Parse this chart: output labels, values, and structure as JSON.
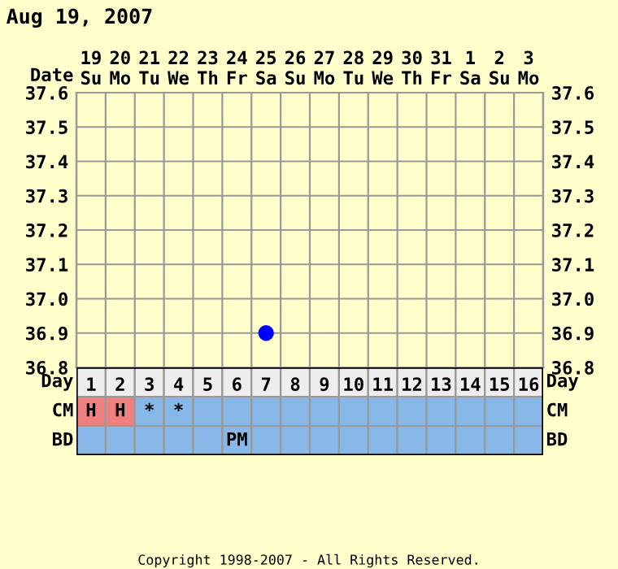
{
  "chart_data": [
    {
      "type": "scatter",
      "title": "Aug 19, 2007",
      "xlabel": "Date",
      "categories": [
        "19\nSu",
        "20\nMo",
        "21\nTu",
        "22\nWe",
        "23\nTh",
        "24\nFr",
        "25\nSa",
        "26\nSu",
        "27\nMo",
        "28\nTu",
        "29\nWe",
        "30\nTh",
        "31\nFr",
        "1\nSa",
        "2\nSu",
        "3\nMo"
      ],
      "series": [
        {
          "color": "#0000ff",
          "values": [
            null,
            null,
            null,
            null,
            null,
            null,
            36.9,
            null,
            null,
            null,
            null,
            null,
            null,
            null,
            null,
            null
          ]
        }
      ],
      "ylim": [
        36.8,
        37.6
      ],
      "yticks": [
        36.8,
        36.9,
        {
          "value": 37,
          "label": "37.0"
        },
        37.1,
        37.2,
        37.3,
        37.4,
        37.5,
        37.6
      ],
      "y2lim": [
        36.8,
        37.6
      ],
      "y2ticks": [
        36.8,
        36.9,
        {
          "value": 37,
          "label": "37.0"
        },
        37.1,
        37.2,
        37.3,
        37.4,
        37.5,
        37.6
      ],
      "grid": true,
      "marker": "circle",
      "legend": false
    },
    {
      "type": "heatmap",
      "xlabel": "Day",
      "cells": [
        [
          null,
          null,
          null,
          null,
          null,
          null,
          null,
          null,
          null,
          null,
          null,
          null,
          null,
          null,
          null,
          null
        ],
        [
          null,
          null,
          null,
          null,
          null,
          null,
          null,
          null,
          null,
          null,
          null,
          null,
          null,
          null,
          null,
          null
        ]
      ],
      "categories": [
        "1",
        "2",
        "3",
        "4",
        "5",
        "6",
        "7",
        "8",
        "9",
        "10",
        "11",
        "12",
        "13",
        "14",
        "15",
        "16"
      ],
      "y_categories": [
        "CM",
        "BD"
      ],
      "y2_categories": [
        "CM",
        "BD"
      ],
      "cell_labels": [
        [
          "H",
          "H",
          "*",
          "*",
          null,
          null,
          null,
          null,
          null,
          null,
          null,
          null,
          null,
          null,
          null,
          null
        ],
        [
          null,
          null,
          null,
          null,
          null,
          "PM",
          null,
          null,
          null,
          null,
          null,
          null,
          null,
          null,
          null,
          null
        ]
      ],
      "colors": [
        [
          "#f08080",
          "#f08080",
          "#88b8e8",
          "#88b8e8",
          "#88b8e8",
          "#88b8e8",
          "#88b8e8",
          "#88b8e8",
          "#88b8e8",
          "#88b8e8",
          "#88b8e8",
          "#88b8e8",
          "#88b8e8",
          "#88b8e8",
          "#88b8e8",
          "#88b8e8"
        ],
        [
          "#88b8e8",
          "#88b8e8",
          "#88b8e8",
          "#88b8e8",
          "#88b8e8",
          "#88b8e8",
          "#88b8e8",
          "#88b8e8",
          "#88b8e8",
          "#88b8e8",
          "#88b8e8",
          "#88b8e8",
          "#88b8e8",
          "#88b8e8",
          "#88b8e8",
          "#88b8e8"
        ]
      ],
      "annotations": [
        "Copyright 1998-2007 - All Rights Reserved."
      ]
    }
  ]
}
